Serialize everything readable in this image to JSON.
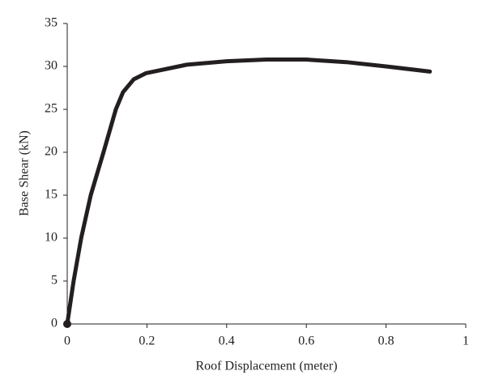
{
  "chart_data": {
    "type": "line",
    "xlabel": "Roof Displacement (meter)",
    "ylabel": "Base Shear (kN)",
    "x": [
      0,
      0.016,
      0.035,
      0.059,
      0.091,
      0.122,
      0.14,
      0.167,
      0.197,
      0.3,
      0.4,
      0.5,
      0.6,
      0.7,
      0.8,
      0.91
    ],
    "values": [
      0,
      5,
      10,
      15,
      20,
      25,
      27,
      28.5,
      29.2,
      30.2,
      30.6,
      30.8,
      30.8,
      30.5,
      30.0,
      29.4
    ],
    "color": "#231f20",
    "xlim": [
      0,
      1
    ],
    "xticks": [
      0,
      0.2,
      0.4,
      0.6,
      0.8,
      1
    ],
    "ylim": [
      0,
      35
    ],
    "yticks": [
      0,
      5,
      10,
      15,
      20,
      25,
      30,
      35
    ]
  }
}
